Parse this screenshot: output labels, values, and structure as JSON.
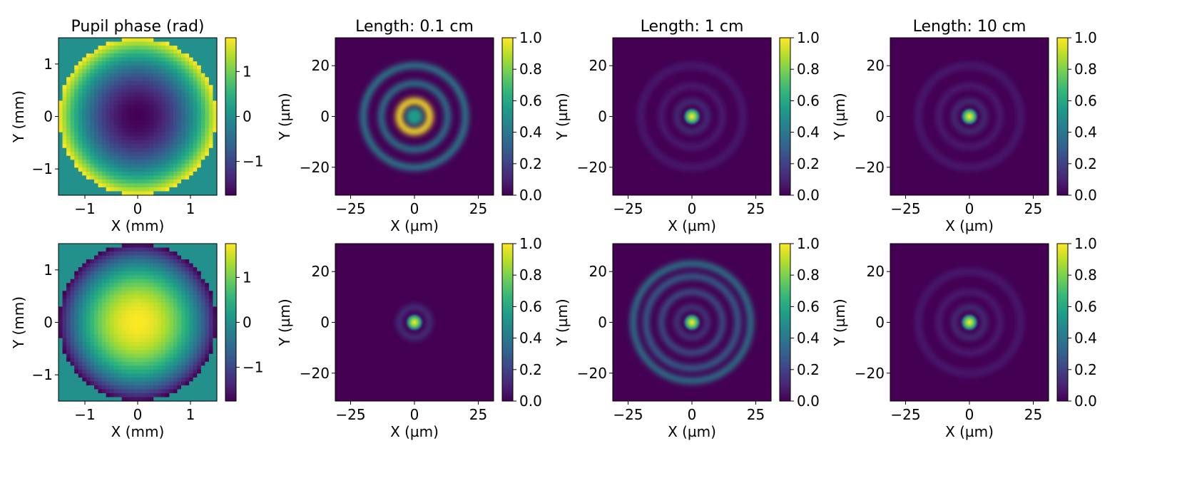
{
  "colors": {
    "colormap": "viridis",
    "viridis_stops": [
      "#440154",
      "#482878",
      "#3e4989",
      "#31688e",
      "#26828e",
      "#1f9e89",
      "#35b779",
      "#6ece58",
      "#b5de2b",
      "#fde725"
    ]
  },
  "chart_data": [
    {
      "type": "heatmap",
      "row": 0,
      "col": 0,
      "title": "Pupil phase (rad)",
      "xlabel": "X (mm)",
      "ylabel": "Y (mm)",
      "xlim": [
        -1.5,
        1.5
      ],
      "ylim": [
        -1.5,
        1.5
      ],
      "xticks": [
        -1,
        0,
        1
      ],
      "yticks": [
        -1,
        0,
        1
      ],
      "pattern": {
        "kind": "pupil_phase",
        "aperture_radius": 1.5,
        "center_value": -1.75,
        "edge_value": 1.75,
        "outside_value": 0,
        "pixels": 40
      },
      "colorbar": {
        "range": [
          -1.75,
          1.75
        ],
        "ticks": [
          -1,
          0,
          1
        ]
      }
    },
    {
      "type": "heatmap",
      "row": 0,
      "col": 1,
      "title": "Length: 0.1 cm",
      "xlabel": "X (µm)",
      "ylabel": "Y (µm)",
      "xlim": [
        -31,
        31
      ],
      "ylim": [
        -31,
        31
      ],
      "xticks": [
        -25,
        0,
        25
      ],
      "yticks": [
        -20,
        0,
        20
      ],
      "pattern": {
        "kind": "rings",
        "peak_value": 0.55,
        "peak_width": 0,
        "rings": [
          {
            "r": 6,
            "value": 1.0,
            "width": 2.6
          },
          {
            "r": 13,
            "value": 0.45,
            "width": 2.2
          },
          {
            "r": 20,
            "value": 0.45,
            "width": 2.4
          }
        ]
      },
      "colorbar": {
        "range": [
          0,
          1
        ],
        "ticks": [
          0.0,
          0.2,
          0.4,
          0.6,
          0.8,
          1.0
        ]
      }
    },
    {
      "type": "heatmap",
      "row": 0,
      "col": 2,
      "title": "Length: 1 cm",
      "xlabel": "X (µm)",
      "ylabel": "Y (µm)",
      "xlim": [
        -31,
        31
      ],
      "ylim": [
        -31,
        31
      ],
      "xticks": [
        -25,
        0,
        25
      ],
      "yticks": [
        -20,
        0,
        20
      ],
      "pattern": {
        "kind": "rings",
        "peak_value": 1.0,
        "peak_width": 1.8,
        "rings": [
          {
            "r": 6,
            "value": 0.2,
            "width": 1.5
          },
          {
            "r": 12,
            "value": 0.1,
            "width": 2.0
          },
          {
            "r": 20,
            "value": 0.08,
            "width": 2.5
          }
        ]
      },
      "colorbar": {
        "range": [
          0,
          1
        ],
        "ticks": [
          0.0,
          0.2,
          0.4,
          0.6,
          0.8,
          1.0
        ]
      }
    },
    {
      "type": "heatmap",
      "row": 0,
      "col": 3,
      "title": "Length: 10 cm",
      "xlabel": "X (µm)",
      "ylabel": "Y (µm)",
      "xlim": [
        -31,
        31
      ],
      "ylim": [
        -31,
        31
      ],
      "xticks": [
        -25,
        0,
        25
      ],
      "yticks": [
        -20,
        0,
        20
      ],
      "pattern": {
        "kind": "rings",
        "peak_value": 1.0,
        "peak_width": 1.8,
        "rings": [
          {
            "r": 6,
            "value": 0.2,
            "width": 1.5
          },
          {
            "r": 12,
            "value": 0.1,
            "width": 2.0
          },
          {
            "r": 20,
            "value": 0.08,
            "width": 2.5
          }
        ]
      },
      "colorbar": {
        "range": [
          0,
          1
        ],
        "ticks": [
          0.0,
          0.2,
          0.4,
          0.6,
          0.8,
          1.0
        ]
      }
    },
    {
      "type": "heatmap",
      "row": 1,
      "col": 0,
      "title": "",
      "xlabel": "X (mm)",
      "ylabel": "Y (mm)",
      "xlim": [
        -1.5,
        1.5
      ],
      "ylim": [
        -1.5,
        1.5
      ],
      "xticks": [
        -1,
        0,
        1
      ],
      "yticks": [
        -1,
        0,
        1
      ],
      "pattern": {
        "kind": "pupil_phase",
        "aperture_radius": 1.5,
        "center_value": 1.75,
        "edge_value": -1.75,
        "outside_value": 0,
        "pixels": 40
      },
      "colorbar": {
        "range": [
          -1.75,
          1.75
        ],
        "ticks": [
          -1,
          0,
          1
        ]
      }
    },
    {
      "type": "heatmap",
      "row": 1,
      "col": 1,
      "title": "",
      "xlabel": "X (µm)",
      "ylabel": "Y (µm)",
      "xlim": [
        -31,
        31
      ],
      "ylim": [
        -31,
        31
      ],
      "xticks": [
        -25,
        0,
        25
      ],
      "yticks": [
        -20,
        0,
        20
      ],
      "pattern": {
        "kind": "rings",
        "peak_value": 1.0,
        "peak_width": 1.8,
        "rings": [
          {
            "r": 6,
            "value": 0.2,
            "width": 1.6
          }
        ]
      },
      "colorbar": {
        "range": [
          0,
          1
        ],
        "ticks": [
          0.0,
          0.2,
          0.4,
          0.6,
          0.8,
          1.0
        ]
      }
    },
    {
      "type": "heatmap",
      "row": 1,
      "col": 2,
      "title": "",
      "xlabel": "X (µm)",
      "ylabel": "Y (µm)",
      "xlim": [
        -31,
        31
      ],
      "ylim": [
        -31,
        31
      ],
      "xticks": [
        -25,
        0,
        25
      ],
      "yticks": [
        -20,
        0,
        20
      ],
      "pattern": {
        "kind": "rings",
        "peak_value": 1.0,
        "peak_width": 1.8,
        "rings": [
          {
            "r": 6,
            "value": 0.25,
            "width": 1.5
          },
          {
            "r": 12,
            "value": 0.3,
            "width": 2.0
          },
          {
            "r": 18,
            "value": 0.35,
            "width": 2.2
          },
          {
            "r": 23,
            "value": 0.45,
            "width": 2.2
          }
        ]
      },
      "colorbar": {
        "range": [
          0,
          1
        ],
        "ticks": [
          0.0,
          0.2,
          0.4,
          0.6,
          0.8,
          1.0
        ]
      }
    },
    {
      "type": "heatmap",
      "row": 1,
      "col": 3,
      "title": "",
      "xlabel": "X (µm)",
      "ylabel": "Y (µm)",
      "xlim": [
        -31,
        31
      ],
      "ylim": [
        -31,
        31
      ],
      "xticks": [
        -25,
        0,
        25
      ],
      "yticks": [
        -20,
        0,
        20
      ],
      "pattern": {
        "kind": "rings",
        "peak_value": 1.0,
        "peak_width": 1.8,
        "rings": [
          {
            "r": 6,
            "value": 0.2,
            "width": 1.5
          },
          {
            "r": 12,
            "value": 0.1,
            "width": 2.0
          },
          {
            "r": 20,
            "value": 0.08,
            "width": 2.5
          }
        ]
      },
      "colorbar": {
        "range": [
          0,
          1
        ],
        "ticks": [
          0.0,
          0.2,
          0.4,
          0.6,
          0.8,
          1.0
        ]
      }
    }
  ]
}
